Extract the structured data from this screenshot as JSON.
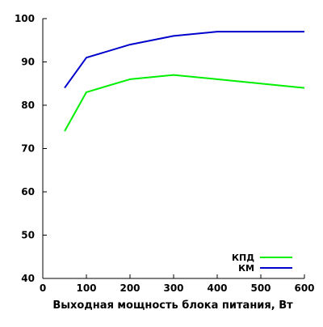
{
  "chart_data": {
    "type": "line",
    "title": "",
    "xlabel": "Выходная мощность блока питания, Вт",
    "ylabel": "",
    "xlim": [
      0,
      600
    ],
    "ylim": [
      40,
      100
    ],
    "x_ticks": [
      0,
      100,
      200,
      300,
      400,
      500,
      600
    ],
    "y_ticks": [
      40,
      50,
      60,
      70,
      80,
      90,
      100
    ],
    "grid": false,
    "legend": "bottom-right",
    "series": [
      {
        "name": "КПД",
        "color": "#00ee00",
        "x": [
          50,
          100,
          200,
          300,
          400,
          500,
          600
        ],
        "y": [
          74,
          83,
          86,
          87,
          86,
          85,
          84
        ]
      },
      {
        "name": "КМ",
        "color": "#0000cc",
        "x": [
          50,
          100,
          200,
          300,
          400,
          500,
          600
        ],
        "y": [
          84,
          91,
          94,
          96,
          97,
          97,
          97
        ]
      }
    ]
  }
}
